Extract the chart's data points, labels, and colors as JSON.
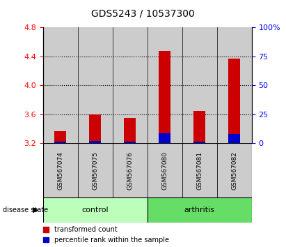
{
  "title": "GDS5243 / 10537300",
  "samples": [
    "GSM567074",
    "GSM567075",
    "GSM567076",
    "GSM567080",
    "GSM567081",
    "GSM567082"
  ],
  "red_values": [
    3.37,
    3.6,
    3.55,
    4.47,
    3.65,
    4.37
  ],
  "blue_values": [
    3.225,
    3.235,
    3.225,
    3.335,
    3.225,
    3.325
  ],
  "ymin": 3.2,
  "ymax": 4.8,
  "yticks_left": [
    3.2,
    3.6,
    4.0,
    4.4,
    4.8
  ],
  "yticks_right": [
    0,
    25,
    50,
    75,
    100
  ],
  "yright_labels": [
    "0",
    "25",
    "50",
    "75",
    "100%"
  ],
  "grid_lines": [
    3.6,
    4.0,
    4.4
  ],
  "control_color": "#bbffbb",
  "arthritis_color": "#66dd66",
  "bar_bg_color": "#cccccc",
  "red_bar_color": "#cc0000",
  "blue_bar_color": "#0000cc",
  "legend_red": "transformed count",
  "legend_blue": "percentile rank within the sample",
  "disease_state_label": "disease state",
  "control_label": "control",
  "arthritis_label": "arthritis",
  "title_fontsize": 10,
  "tick_fontsize": 8,
  "sample_fontsize": 6.5,
  "label_fontsize": 8
}
